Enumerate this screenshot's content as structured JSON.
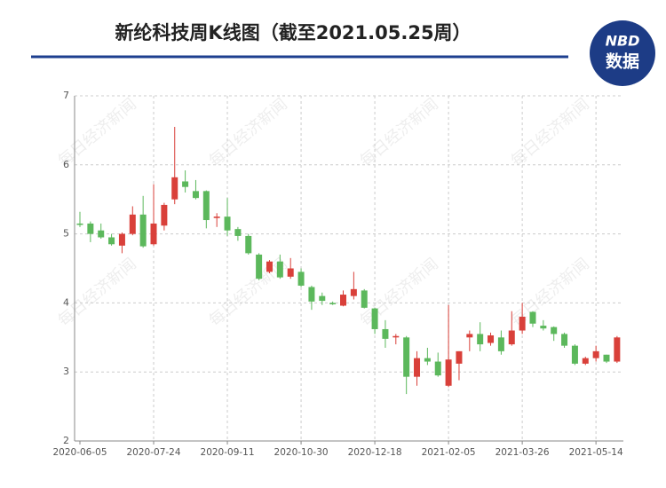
{
  "chart_data": {
    "type": "candlestick",
    "title": "新纶科技周K线图（截至2021.05.25周）",
    "logo": {
      "top": "NBD",
      "bottom": "数据"
    },
    "watermark": "每日经济新闻",
    "categories": [
      "2020-06-05",
      null,
      null,
      null,
      null,
      null,
      null,
      "2020-07-24",
      null,
      null,
      null,
      null,
      null,
      null,
      "2020-09-11",
      null,
      null,
      null,
      null,
      null,
      null,
      "2020-10-30",
      null,
      null,
      null,
      null,
      null,
      null,
      "2020-12-18",
      null,
      null,
      null,
      null,
      null,
      null,
      "2021-02-05",
      null,
      null,
      null,
      null,
      null,
      null,
      "2021-03-26",
      null,
      null,
      null,
      null,
      null,
      null,
      "2021-05-14",
      null,
      null
    ],
    "open": [
      5.15,
      5.15,
      5.05,
      4.95,
      4.83,
      5.0,
      5.28,
      4.85,
      5.12,
      5.5,
      5.76,
      5.62,
      5.62,
      5.23,
      5.25,
      5.07,
      4.97,
      4.7,
      4.45,
      4.6,
      4.38,
      4.45,
      4.23,
      4.1,
      4.0,
      3.96,
      4.1,
      4.18,
      3.92,
      3.62,
      3.5,
      3.5,
      2.93,
      3.2,
      3.15,
      2.8,
      3.12,
      3.5,
      3.55,
      3.42,
      3.5,
      3.4,
      3.6,
      3.87,
      3.67,
      3.65,
      3.55,
      3.38,
      3.12,
      3.2,
      3.25,
      3.15
    ],
    "high": [
      5.32,
      5.18,
      5.15,
      5.0,
      5.02,
      5.4,
      5.55,
      5.72,
      5.45,
      6.55,
      5.92,
      5.78,
      5.63,
      5.3,
      5.52,
      5.1,
      5.0,
      4.72,
      4.62,
      4.7,
      4.65,
      4.5,
      4.25,
      4.15,
      4.02,
      4.18,
      4.45,
      4.2,
      3.93,
      3.75,
      3.55,
      3.52,
      3.3,
      3.35,
      3.28,
      3.97,
      3.3,
      3.6,
      3.72,
      3.57,
      3.6,
      3.88,
      4.0,
      3.88,
      3.75,
      3.66,
      3.57,
      3.4,
      3.22,
      3.38,
      3.25,
      3.52
    ],
    "low": [
      5.1,
      4.88,
      4.93,
      4.83,
      4.72,
      4.98,
      4.8,
      4.83,
      5.05,
      5.43,
      5.6,
      5.5,
      5.08,
      5.1,
      4.97,
      4.9,
      4.7,
      4.33,
      4.43,
      4.35,
      4.35,
      4.23,
      3.9,
      3.97,
      3.97,
      3.95,
      4.05,
      3.92,
      3.55,
      3.35,
      3.4,
      2.68,
      2.8,
      3.1,
      2.93,
      2.78,
      2.88,
      3.3,
      3.3,
      3.38,
      3.25,
      3.38,
      3.55,
      3.65,
      3.6,
      3.45,
      3.35,
      3.1,
      3.1,
      3.15,
      3.13,
      3.13
    ],
    "close": [
      5.13,
      5.0,
      4.95,
      4.85,
      5.0,
      5.28,
      4.82,
      5.15,
      5.42,
      5.82,
      5.68,
      5.52,
      5.2,
      5.25,
      5.05,
      4.97,
      4.72,
      4.35,
      4.6,
      4.37,
      4.5,
      4.25,
      4.02,
      4.03,
      3.98,
      4.12,
      4.2,
      3.93,
      3.62,
      3.48,
      3.52,
      2.93,
      3.2,
      3.15,
      2.95,
      3.18,
      3.3,
      3.55,
      3.4,
      3.53,
      3.3,
      3.6,
      3.8,
      3.7,
      3.63,
      3.55,
      3.38,
      3.12,
      3.2,
      3.3,
      3.15,
      3.5
    ],
    "up_color": "#d9403a",
    "down_color": "#5cb85c",
    "ylim": [
      2,
      7
    ],
    "yticks": [
      2,
      3,
      4,
      5,
      6,
      7
    ],
    "grid": true
  }
}
